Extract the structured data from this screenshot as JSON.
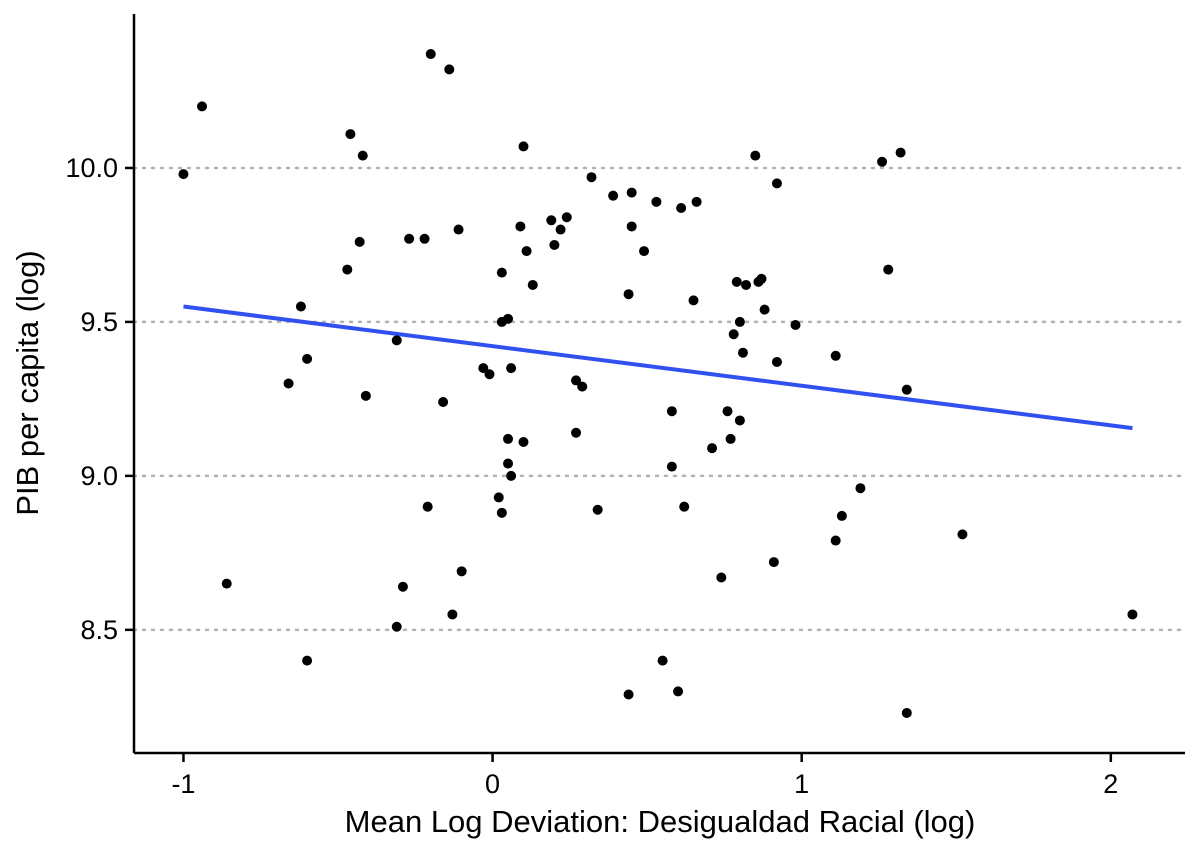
{
  "chart_data": {
    "type": "scatter",
    "xlabel": "Mean Log Deviation: Desigualdad Racial (log)",
    "ylabel": "PIB per capita (log)",
    "xlim": [
      -1.16,
      2.24
    ],
    "ylim": [
      8.1,
      10.5
    ],
    "x_ticks": [
      -1,
      0,
      1,
      2
    ],
    "x_tick_labels": [
      "-1",
      "0",
      "1",
      "2"
    ],
    "y_ticks": [
      8.5,
      9.0,
      9.5,
      10.0
    ],
    "y_tick_labels": [
      "8.5",
      "9.0",
      "9.5",
      "10.0"
    ],
    "grid": "horizontal major dotted",
    "legend": "none",
    "colors": {
      "points": "#000000",
      "fit_line": "#3050f0",
      "grid": "#b3b3b3"
    },
    "fit_line": {
      "x": [
        -1.0,
        2.07
      ],
      "y": [
        9.55,
        9.155
      ]
    },
    "points": [
      {
        "x": -1.0,
        "y": 9.98
      },
      {
        "x": -0.94,
        "y": 10.2
      },
      {
        "x": -0.86,
        "y": 8.65
      },
      {
        "x": -0.66,
        "y": 9.3
      },
      {
        "x": -0.62,
        "y": 9.55
      },
      {
        "x": -0.6,
        "y": 9.38
      },
      {
        "x": -0.6,
        "y": 8.4
      },
      {
        "x": -0.47,
        "y": 9.67
      },
      {
        "x": -0.46,
        "y": 10.11
      },
      {
        "x": -0.43,
        "y": 9.76
      },
      {
        "x": -0.42,
        "y": 10.04
      },
      {
        "x": -0.41,
        "y": 9.26
      },
      {
        "x": -0.31,
        "y": 9.44
      },
      {
        "x": -0.31,
        "y": 8.51
      },
      {
        "x": -0.29,
        "y": 8.64
      },
      {
        "x": -0.27,
        "y": 9.77
      },
      {
        "x": -0.22,
        "y": 9.77
      },
      {
        "x": -0.21,
        "y": 8.9
      },
      {
        "x": -0.2,
        "y": 10.37
      },
      {
        "x": -0.16,
        "y": 9.24
      },
      {
        "x": -0.14,
        "y": 10.32
      },
      {
        "x": -0.13,
        "y": 8.55
      },
      {
        "x": -0.11,
        "y": 9.8
      },
      {
        "x": -0.1,
        "y": 8.69
      },
      {
        "x": -0.03,
        "y": 9.35
      },
      {
        "x": -0.01,
        "y": 9.33
      },
      {
        "x": 0.02,
        "y": 8.93
      },
      {
        "x": 0.03,
        "y": 9.66
      },
      {
        "x": 0.03,
        "y": 9.5
      },
      {
        "x": 0.03,
        "y": 8.88
      },
      {
        "x": 0.05,
        "y": 9.51
      },
      {
        "x": 0.05,
        "y": 9.04
      },
      {
        "x": 0.05,
        "y": 9.12
      },
      {
        "x": 0.06,
        "y": 9.35
      },
      {
        "x": 0.06,
        "y": 9.0
      },
      {
        "x": 0.09,
        "y": 9.81
      },
      {
        "x": 0.1,
        "y": 10.07
      },
      {
        "x": 0.1,
        "y": 9.11
      },
      {
        "x": 0.11,
        "y": 9.73
      },
      {
        "x": 0.13,
        "y": 9.62
      },
      {
        "x": 0.19,
        "y": 9.83
      },
      {
        "x": 0.2,
        "y": 9.75
      },
      {
        "x": 0.22,
        "y": 9.8
      },
      {
        "x": 0.24,
        "y": 9.84
      },
      {
        "x": 0.27,
        "y": 9.31
      },
      {
        "x": 0.27,
        "y": 9.14
      },
      {
        "x": 0.29,
        "y": 9.29
      },
      {
        "x": 0.32,
        "y": 9.97
      },
      {
        "x": 0.34,
        "y": 8.89
      },
      {
        "x": 0.39,
        "y": 9.91
      },
      {
        "x": 0.44,
        "y": 9.59
      },
      {
        "x": 0.44,
        "y": 8.29
      },
      {
        "x": 0.45,
        "y": 9.81
      },
      {
        "x": 0.45,
        "y": 9.92
      },
      {
        "x": 0.49,
        "y": 9.73
      },
      {
        "x": 0.53,
        "y": 9.89
      },
      {
        "x": 0.55,
        "y": 8.4
      },
      {
        "x": 0.58,
        "y": 9.21
      },
      {
        "x": 0.58,
        "y": 9.03
      },
      {
        "x": 0.6,
        "y": 8.3
      },
      {
        "x": 0.61,
        "y": 9.87
      },
      {
        "x": 0.62,
        "y": 8.9
      },
      {
        "x": 0.65,
        "y": 9.57
      },
      {
        "x": 0.66,
        "y": 9.89
      },
      {
        "x": 0.71,
        "y": 9.09
      },
      {
        "x": 0.74,
        "y": 8.67
      },
      {
        "x": 0.76,
        "y": 9.21
      },
      {
        "x": 0.77,
        "y": 9.12
      },
      {
        "x": 0.78,
        "y": 9.46
      },
      {
        "x": 0.79,
        "y": 9.63
      },
      {
        "x": 0.8,
        "y": 9.5
      },
      {
        "x": 0.8,
        "y": 9.18
      },
      {
        "x": 0.81,
        "y": 9.4
      },
      {
        "x": 0.82,
        "y": 9.62
      },
      {
        "x": 0.85,
        "y": 10.04
      },
      {
        "x": 0.86,
        "y": 9.63
      },
      {
        "x": 0.87,
        "y": 9.64
      },
      {
        "x": 0.88,
        "y": 9.54
      },
      {
        "x": 0.91,
        "y": 8.72
      },
      {
        "x": 0.92,
        "y": 9.95
      },
      {
        "x": 0.92,
        "y": 9.37
      },
      {
        "x": 0.98,
        "y": 9.49
      },
      {
        "x": 1.11,
        "y": 9.39
      },
      {
        "x": 1.11,
        "y": 8.79
      },
      {
        "x": 1.13,
        "y": 8.87
      },
      {
        "x": 1.19,
        "y": 8.96
      },
      {
        "x": 1.26,
        "y": 10.02
      },
      {
        "x": 1.28,
        "y": 9.67
      },
      {
        "x": 1.32,
        "y": 10.05
      },
      {
        "x": 1.34,
        "y": 9.28
      },
      {
        "x": 1.34,
        "y": 8.23
      },
      {
        "x": 1.52,
        "y": 8.81
      },
      {
        "x": 2.07,
        "y": 8.55
      }
    ]
  }
}
